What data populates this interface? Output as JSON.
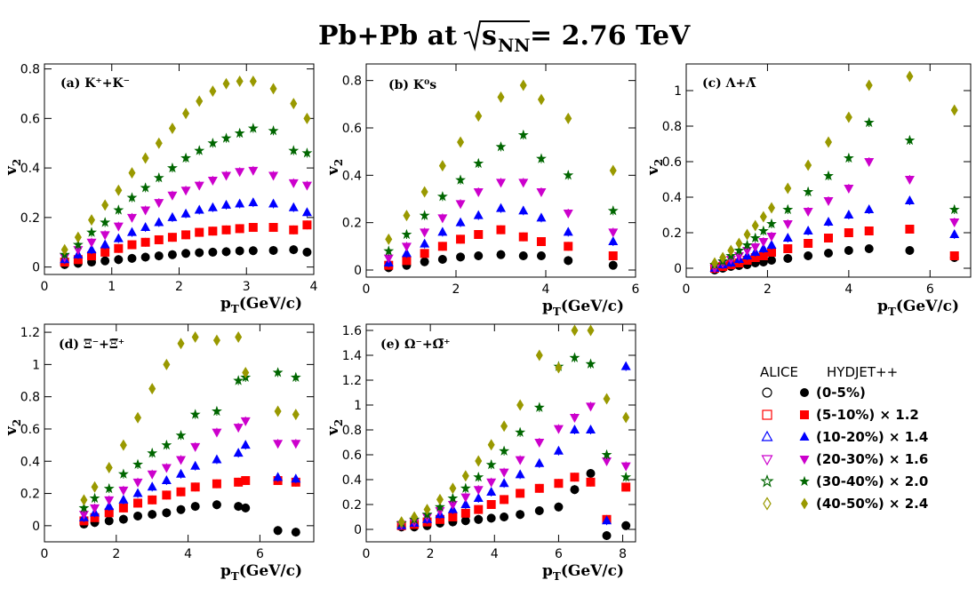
{
  "title": {
    "prefix": "Pb+Pb at",
    "sqrt_s": "s",
    "sqrt_sub": "NN",
    "suffix": "= 2.76 TeV"
  },
  "legend": {
    "header_data": "ALICE",
    "header_model": "HYDJET++",
    "entries": [
      {
        "label": "(0-5%)",
        "color": "#000000",
        "marker": "circle"
      },
      {
        "label": "(5-10%)  × 1.2",
        "color": "#ff0000",
        "marker": "square"
      },
      {
        "label": "(10-20%)  × 1.4",
        "color": "#0000ff",
        "marker": "triangle-up"
      },
      {
        "label": "(20-30%)  × 1.6",
        "color": "#cc00cc",
        "marker": "triangle-down"
      },
      {
        "label": "(30-40%)  × 2.0",
        "color": "#006600",
        "marker": "star"
      },
      {
        "label": "(40-50%)  × 2.4",
        "color": "#999900",
        "marker": "diamond"
      }
    ]
  },
  "chart_data": [
    {
      "type": "scatter",
      "panel_label": "(a) K⁺+K⁻",
      "xlabel": "p_T (GeV/c)",
      "ylabel": "v_2",
      "xlim": [
        0,
        4
      ],
      "ylim": [
        -0.03,
        0.82
      ],
      "xticks": [
        0,
        1,
        2,
        3,
        4
      ],
      "yticks": [
        0,
        0.2,
        0.4,
        0.6,
        0.8
      ],
      "x": [
        0.3,
        0.5,
        0.7,
        0.9,
        1.1,
        1.3,
        1.5,
        1.7,
        1.9,
        2.1,
        2.3,
        2.5,
        2.7,
        2.9,
        3.1,
        3.4,
        3.7,
        3.9
      ],
      "series": [
        {
          "name": "(0-5%) HYDJET++",
          "values": [
            0.01,
            0.015,
            0.02,
            0.025,
            0.03,
            0.035,
            0.04,
            0.045,
            0.05,
            0.055,
            0.058,
            0.06,
            0.062,
            0.065,
            0.066,
            0.067,
            0.07,
            0.06
          ]
        },
        {
          "name": "(5-10%) HYDJET++",
          "values": [
            0.02,
            0.03,
            0.045,
            0.06,
            0.075,
            0.09,
            0.1,
            0.11,
            0.12,
            0.13,
            0.14,
            0.145,
            0.15,
            0.155,
            0.16,
            0.16,
            0.15,
            0.17
          ]
        },
        {
          "name": "(10-20%) HYDJET++",
          "values": [
            0.03,
            0.05,
            0.07,
            0.09,
            0.115,
            0.14,
            0.16,
            0.18,
            0.2,
            0.215,
            0.23,
            0.24,
            0.25,
            0.255,
            0.26,
            0.255,
            0.24,
            0.22
          ]
        },
        {
          "name": "(20-30%) HYDJET++",
          "values": [
            0.04,
            0.07,
            0.1,
            0.13,
            0.165,
            0.2,
            0.23,
            0.26,
            0.29,
            0.31,
            0.33,
            0.35,
            0.37,
            0.385,
            0.39,
            0.37,
            0.34,
            0.33
          ]
        },
        {
          "name": "(30-40%) HYDJET++",
          "values": [
            0.05,
            0.09,
            0.14,
            0.18,
            0.23,
            0.28,
            0.32,
            0.36,
            0.4,
            0.44,
            0.47,
            0.5,
            0.52,
            0.54,
            0.56,
            0.55,
            0.47,
            0.46
          ]
        },
        {
          "name": "(40-50%) HYDJET++",
          "values": [
            0.07,
            0.12,
            0.19,
            0.25,
            0.31,
            0.38,
            0.44,
            0.5,
            0.56,
            0.62,
            0.67,
            0.71,
            0.74,
            0.75,
            0.75,
            0.72,
            0.66,
            0.6
          ]
        }
      ]
    },
    {
      "type": "scatter",
      "panel_label": "(b) K⁰s",
      "xlabel": "p_T (GeV/c)",
      "ylabel": "v_2",
      "xlim": [
        0,
        6
      ],
      "ylim": [
        -0.03,
        0.87
      ],
      "xticks": [
        0,
        2,
        4,
        6
      ],
      "yticks": [
        0,
        0.2,
        0.4,
        0.6,
        0.8
      ],
      "x": [
        0.5,
        0.9,
        1.3,
        1.7,
        2.1,
        2.5,
        3.0,
        3.5,
        3.9,
        4.5,
        5.5
      ],
      "series": [
        {
          "name": "(0-5%) HYDJET++",
          "values": [
            0.01,
            0.02,
            0.035,
            0.045,
            0.055,
            0.06,
            0.065,
            0.06,
            0.06,
            0.04,
            0.02
          ]
        },
        {
          "name": "(5-10%) HYDJET++",
          "values": [
            0.02,
            0.04,
            0.07,
            0.1,
            0.13,
            0.15,
            0.17,
            0.14,
            0.12,
            0.1,
            0.06
          ]
        },
        {
          "name": "(10-20%) HYDJET++",
          "values": [
            0.03,
            0.07,
            0.11,
            0.16,
            0.2,
            0.23,
            0.26,
            0.25,
            0.22,
            0.16,
            0.12
          ]
        },
        {
          "name": "(20-30%) HYDJET++",
          "values": [
            0.05,
            0.1,
            0.16,
            0.22,
            0.28,
            0.33,
            0.37,
            0.37,
            0.33,
            0.24,
            0.16
          ]
        },
        {
          "name": "(30-40%) HYDJET++",
          "values": [
            0.08,
            0.15,
            0.23,
            0.31,
            0.38,
            0.45,
            0.52,
            0.57,
            0.47,
            0.4,
            0.25
          ]
        },
        {
          "name": "(40-50%) HYDJET++",
          "values": [
            0.13,
            0.23,
            0.33,
            0.44,
            0.54,
            0.65,
            0.73,
            0.78,
            0.72,
            0.64,
            0.42
          ]
        }
      ]
    },
    {
      "type": "scatter",
      "panel_label": "(c) Λ+Λ̅",
      "xlabel": "p_T (GeV/c)",
      "ylabel": "v_2",
      "xlim": [
        0,
        7
      ],
      "ylim": [
        -0.05,
        1.15
      ],
      "xticks": [
        0,
        2,
        4,
        6
      ],
      "yticks": [
        0,
        0.2,
        0.4,
        0.6,
        0.8,
        1.0
      ],
      "x": [
        0.7,
        0.9,
        1.1,
        1.3,
        1.5,
        1.7,
        1.9,
        2.1,
        2.5,
        3.0,
        3.5,
        4.0,
        4.5,
        5.5,
        6.6
      ],
      "series": [
        {
          "name": "(0-5%) HYDJET++",
          "values": [
            -0.01,
            0.0,
            0.01,
            0.015,
            0.02,
            0.03,
            0.035,
            0.045,
            0.055,
            0.07,
            0.085,
            0.1,
            0.11,
            0.1,
            0.06
          ]
        },
        {
          "name": "(5-10%) HYDJET++",
          "values": [
            0.0,
            0.01,
            0.02,
            0.03,
            0.045,
            0.06,
            0.07,
            0.09,
            0.11,
            0.14,
            0.17,
            0.2,
            0.21,
            0.22,
            0.07
          ]
        },
        {
          "name": "(10-20%) HYDJET++",
          "values": [
            0.0,
            0.02,
            0.03,
            0.05,
            0.07,
            0.09,
            0.11,
            0.13,
            0.17,
            0.21,
            0.26,
            0.3,
            0.33,
            0.38,
            0.19
          ]
        },
        {
          "name": "(20-30%) HYDJET++",
          "values": [
            0.0,
            0.03,
            0.05,
            0.07,
            0.1,
            0.12,
            0.15,
            0.18,
            0.25,
            0.32,
            0.38,
            0.45,
            0.6,
            0.5,
            0.26
          ]
        },
        {
          "name": "(30-40%) HYDJET++",
          "values": [
            0.02,
            0.04,
            0.07,
            0.1,
            0.13,
            0.17,
            0.21,
            0.25,
            0.33,
            0.43,
            0.52,
            0.62,
            0.82,
            0.72,
            0.33
          ]
        },
        {
          "name": "(40-50%) HYDJET++",
          "values": [
            0.03,
            0.06,
            0.1,
            0.14,
            0.19,
            0.24,
            0.29,
            0.34,
            0.45,
            0.58,
            0.71,
            0.85,
            1.03,
            1.08,
            0.89
          ]
        }
      ]
    },
    {
      "type": "scatter",
      "panel_label": "(d) Ξ⁻+Ξ̅⁺",
      "xlabel": "p_T (GeV/c)",
      "ylabel": "v_2",
      "xlim": [
        0,
        7.5
      ],
      "ylim": [
        -0.1,
        1.25
      ],
      "xticks": [
        0,
        2,
        4,
        6
      ],
      "yticks": [
        0,
        0.2,
        0.4,
        0.6,
        0.8,
        1.0,
        1.2
      ],
      "x": [
        1.1,
        1.4,
        1.8,
        2.2,
        2.6,
        3.0,
        3.4,
        3.8,
        4.2,
        4.8,
        5.4,
        5.6,
        6.5,
        7.0
      ],
      "series": [
        {
          "name": "(0-5%) HYDJET++",
          "values": [
            0.01,
            0.02,
            0.03,
            0.04,
            0.06,
            0.07,
            0.08,
            0.1,
            0.12,
            0.13,
            0.12,
            0.11,
            -0.03,
            -0.04
          ]
        },
        {
          "name": "(5-10%) HYDJET++",
          "values": [
            0.03,
            0.05,
            0.08,
            0.11,
            0.14,
            0.16,
            0.19,
            0.21,
            0.24,
            0.26,
            0.27,
            0.28,
            0.28,
            0.27
          ]
        },
        {
          "name": "(10-20%) HYDJET++",
          "values": [
            0.05,
            0.08,
            0.12,
            0.16,
            0.2,
            0.24,
            0.28,
            0.32,
            0.37,
            0.41,
            0.45,
            0.5,
            0.3,
            0.29
          ]
        },
        {
          "name": "(20-30%) HYDJET++",
          "values": [
            0.07,
            0.11,
            0.16,
            0.22,
            0.27,
            0.32,
            0.36,
            0.41,
            0.49,
            0.58,
            0.61,
            0.65,
            0.51,
            0.51
          ]
        },
        {
          "name": "(30-40%) HYDJET++",
          "values": [
            0.11,
            0.17,
            0.23,
            0.32,
            0.38,
            0.45,
            0.5,
            0.56,
            0.69,
            0.71,
            0.9,
            0.92,
            0.95,
            0.92
          ]
        },
        {
          "name": "(40-50%) HYDJET++",
          "values": [
            0.16,
            0.24,
            0.36,
            0.5,
            0.67,
            0.85,
            1.0,
            1.13,
            1.17,
            1.15,
            1.17,
            0.95,
            0.71,
            0.69
          ]
        }
      ]
    },
    {
      "type": "scatter",
      "panel_label": "(e) Ω⁻+Ω̅⁺",
      "xlabel": "p_T (GeV/c)",
      "ylabel": "v_2",
      "xlim": [
        0,
        8.4
      ],
      "ylim": [
        -0.1,
        1.65
      ],
      "xticks": [
        0,
        2,
        4,
        6,
        8
      ],
      "yticks": [
        0,
        0.2,
        0.4,
        0.6,
        0.8,
        1.0,
        1.2,
        1.4,
        1.6
      ],
      "x": [
        1.1,
        1.5,
        1.9,
        2.3,
        2.7,
        3.1,
        3.5,
        3.9,
        4.3,
        4.8,
        5.4,
        6.0,
        6.5,
        7.0,
        7.5,
        8.1
      ],
      "series": [
        {
          "name": "(0-5%) HYDJET++",
          "values": [
            0.02,
            0.02,
            0.03,
            0.05,
            0.06,
            0.07,
            0.08,
            0.09,
            0.1,
            0.12,
            0.15,
            0.18,
            0.32,
            0.45,
            -0.05,
            0.03
          ]
        },
        {
          "name": "(5-10%) HYDJET++",
          "values": [
            0.03,
            0.04,
            0.06,
            0.08,
            0.1,
            0.13,
            0.16,
            0.2,
            0.24,
            0.29,
            0.33,
            0.37,
            0.42,
            0.38,
            0.08,
            0.34
          ]
        },
        {
          "name": "(10-20%) HYDJET++",
          "values": [
            0.03,
            0.05,
            0.08,
            0.12,
            0.16,
            0.2,
            0.25,
            0.3,
            0.37,
            0.44,
            0.53,
            0.63,
            0.8,
            0.8,
            0.07,
            1.31
          ]
        },
        {
          "name": "(20-30%) HYDJET++",
          "values": [
            0.04,
            0.06,
            0.1,
            0.15,
            0.2,
            0.26,
            0.32,
            0.38,
            0.46,
            0.56,
            0.7,
            0.81,
            0.9,
            0.99,
            0.55,
            0.51
          ]
        },
        {
          "name": "(30-40%) HYDJET++",
          "values": [
            0.05,
            0.08,
            0.12,
            0.18,
            0.25,
            0.33,
            0.42,
            0.52,
            0.63,
            0.78,
            0.98,
            1.31,
            1.38,
            1.33,
            0.6,
            0.42
          ]
        },
        {
          "name": "(40-50%) HYDJET++",
          "values": [
            0.06,
            0.1,
            0.16,
            0.24,
            0.33,
            0.43,
            0.55,
            0.68,
            0.83,
            1.0,
            1.4,
            1.3,
            1.6,
            1.6,
            1.05,
            0.9
          ]
        }
      ]
    }
  ]
}
